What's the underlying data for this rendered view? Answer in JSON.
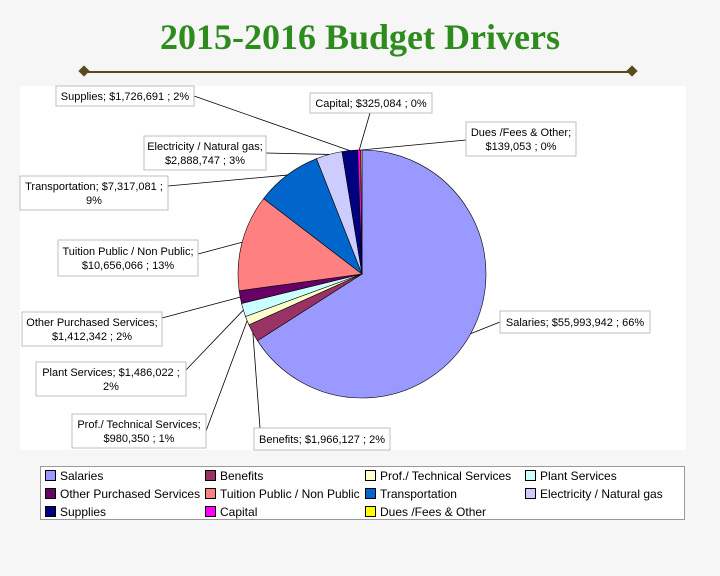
{
  "title": "2015-2016 Budget Drivers",
  "chart_data": {
    "type": "pie",
    "title": "2015-2016 Budget Drivers",
    "slices": [
      {
        "name": "Salaries",
        "value": 55993942,
        "value_text": "$55,993,942",
        "percent": "66%",
        "color": "#9999ff"
      },
      {
        "name": "Benefits",
        "value": 1966127,
        "value_text": "$1,966,127",
        "percent": "2%",
        "color": "#993366"
      },
      {
        "name": "Prof./ Technical Services",
        "value": 980350,
        "value_text": "$980,350",
        "percent": "1%",
        "color": "#ffffcc"
      },
      {
        "name": "Plant Services",
        "value": 1486022,
        "value_text": "$1,486,022",
        "percent": "2%",
        "color": "#ccffff"
      },
      {
        "name": "Other Purchased Services",
        "value": 1412342,
        "value_text": "$1,412,342",
        "percent": "2%",
        "color": "#660066"
      },
      {
        "name": "Tuition Public / Non Public",
        "value": 10656066,
        "value_text": "$10,656,066",
        "percent": "13%",
        "color": "#ff8080"
      },
      {
        "name": "Transportation",
        "value": 7317081,
        "value_text": "$7,317,081",
        "percent": "9%",
        "color": "#0066cc"
      },
      {
        "name": "Electricity / Natural gas",
        "value": 2888747,
        "value_text": "$2,888,747",
        "percent": "3%",
        "color": "#ccccff"
      },
      {
        "name": "Supplies",
        "value": 1726691,
        "value_text": "$1,726,691",
        "percent": "2%",
        "color": "#000080"
      },
      {
        "name": "Capital",
        "value": 325084,
        "value_text": "$325,084",
        "percent": "0%",
        "color": "#ff00ff"
      },
      {
        "name": "Dues /Fees & Other",
        "value": 139053,
        "value_text": "$139,053",
        "percent": "0%",
        "color": "#ffff00"
      }
    ],
    "data_labels": [
      {
        "slice": "Salaries",
        "lines": [
          "Salaries;  $55,993,942 ; 66%"
        ]
      },
      {
        "slice": "Benefits",
        "lines": [
          "Benefits;  $1,966,127 ; 2%"
        ]
      },
      {
        "slice": "Prof./ Technical Services",
        "lines": [
          "Prof./ Technical Services;",
          "$980,350 ; 1%"
        ]
      },
      {
        "slice": "Plant Services",
        "lines": [
          "Plant Services;  $1,486,022 ;",
          "2%"
        ]
      },
      {
        "slice": "Other Purchased Services",
        "lines": [
          "Other Purchased Services;",
          "$1,412,342 ; 2%"
        ]
      },
      {
        "slice": "Tuition Public / Non Public",
        "lines": [
          "Tuition Public / Non Public;",
          "$10,656,066 ; 13%"
        ]
      },
      {
        "slice": "Transportation",
        "lines": [
          "Transportation;  $7,317,081 ;",
          "9%"
        ]
      },
      {
        "slice": "Electricity / Natural gas",
        "lines": [
          "Electricity / Natural gas;",
          "$2,888,747 ; 3%"
        ]
      },
      {
        "slice": "Supplies",
        "lines": [
          "Supplies;  $1,726,691 ; 2%"
        ]
      },
      {
        "slice": "Capital",
        "lines": [
          "Capital;  $325,084 ; 0%"
        ]
      },
      {
        "slice": "Dues /Fees & Other",
        "lines": [
          "Dues /Fees & Other;",
          "$139,053 ; 0%"
        ]
      }
    ],
    "legend_position": "bottom",
    "legend": [
      "Salaries",
      "Benefits",
      "Prof./ Technical Services",
      "Plant Services",
      "Other Purchased Services",
      "Tuition Public / Non Public",
      "Transportation",
      "Electricity / Natural gas",
      "Supplies",
      "Capital",
      "Dues /Fees & Other"
    ]
  }
}
